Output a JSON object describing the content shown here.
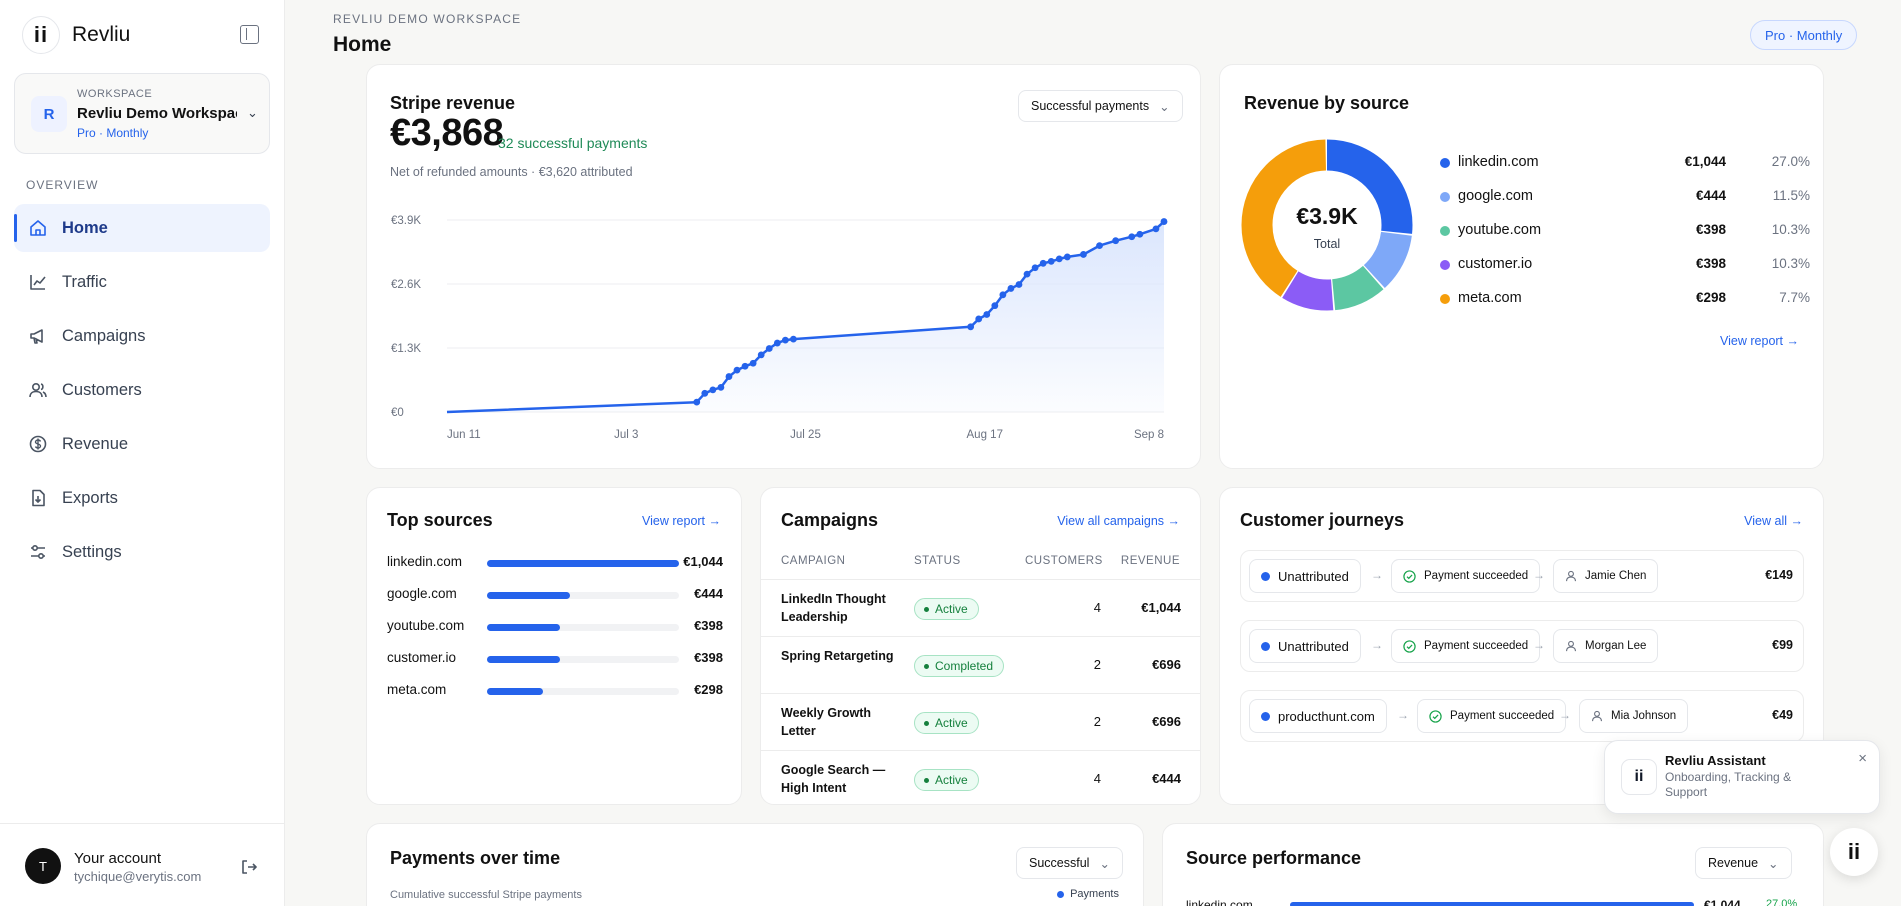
{
  "brand": {
    "name": "Revliu",
    "logo_text": "ii"
  },
  "workspace": {
    "label": "WORKSPACE",
    "avatar": "R",
    "name": "Revliu Demo Workspace",
    "plan": "Pro · Monthly"
  },
  "sidebar": {
    "section": "OVERVIEW",
    "items": [
      {
        "label": "Home",
        "icon": "home-icon",
        "active": true
      },
      {
        "label": "Traffic",
        "icon": "chart-icon"
      },
      {
        "label": "Campaigns",
        "icon": "megaphone-icon"
      },
      {
        "label": "Customers",
        "icon": "users-icon"
      },
      {
        "label": "Revenue",
        "icon": "dollar-icon"
      },
      {
        "label": "Exports",
        "icon": "export-icon"
      },
      {
        "label": "Settings",
        "icon": "sliders-icon"
      }
    ]
  },
  "account": {
    "avatar": "T",
    "name": "Your account",
    "email": "tychique@verytis.com"
  },
  "header": {
    "breadcrumb": "REVLIU DEMO WORKSPACE",
    "title": "Home",
    "plan_badge": "Pro · Monthly"
  },
  "stripe": {
    "title": "Stripe revenue",
    "dropdown": "Successful payments",
    "total": "€3,868",
    "payments": "32 successful payments",
    "note": "Net of refunded amounts · €3,620 attributed"
  },
  "chart_data": {
    "type": "line",
    "title": "Stripe revenue",
    "x_ticks": [
      "Jun 11",
      "Jul 3",
      "Jul 25",
      "Aug 17",
      "Sep 8"
    ],
    "y_ticks": [
      "€0",
      "€1.3K",
      "€2.6K",
      "€3.9K"
    ],
    "ylim": [
      0,
      3900
    ],
    "x": [
      "Jun 11",
      "Jul 12",
      "Jul 13",
      "Jul 14",
      "Jul 15",
      "Jul 16",
      "Jul 17",
      "Jul 18",
      "Jul 19",
      "Jul 20",
      "Jul 21",
      "Jul 22",
      "Jul 23",
      "Jul 24",
      "Aug 15",
      "Aug 16",
      "Aug 17",
      "Aug 18",
      "Aug 19",
      "Aug 20",
      "Aug 21",
      "Aug 22",
      "Aug 23",
      "Aug 24",
      "Aug 25",
      "Aug 26",
      "Aug 27",
      "Aug 29",
      "Aug 31",
      "Sep 2",
      "Sep 4",
      "Sep 5",
      "Sep 7",
      "Sep 8"
    ],
    "values": [
      0,
      200,
      380,
      450,
      500,
      720,
      850,
      930,
      990,
      1160,
      1290,
      1400,
      1460,
      1480,
      1730,
      1890,
      1980,
      2160,
      2380,
      2510,
      2590,
      2800,
      2930,
      3020,
      3060,
      3110,
      3150,
      3200,
      3380,
      3480,
      3560,
      3610,
      3720,
      3868
    ],
    "grid": true,
    "area_fill": "#dbe6fd",
    "line_color": "#2563eb"
  },
  "by_source": {
    "title": "Revenue by source",
    "center_value": "€3.9K",
    "center_label": "Total",
    "link": "View report →",
    "items": [
      {
        "source": "linkedin.com",
        "amount": "€1,044",
        "pct": "27.0%",
        "value": 1044,
        "color": "#2563eb"
      },
      {
        "source": "google.com",
        "amount": "€444",
        "pct": "11.5%",
        "value": 444,
        "color": "#7ea8f8"
      },
      {
        "source": "youtube.com",
        "amount": "€398",
        "pct": "10.3%",
        "value": 398,
        "color": "#5cc7a2"
      },
      {
        "source": "customer.io",
        "amount": "€398",
        "pct": "10.3%",
        "value": 398,
        "color": "#8b5cf6"
      },
      {
        "source": "meta.com",
        "amount": "€298",
        "pct": "7.7%",
        "value": 298,
        "color": "#f59e0b"
      }
    ],
    "donut_remainder": {
      "pct": 33.2,
      "color": "#f59e0b"
    }
  },
  "top_sources": {
    "title": "Top sources",
    "link": "View report →",
    "items": [
      {
        "source": "linkedin.com",
        "amount": "€1,044",
        "fraction": 1.0
      },
      {
        "source": "google.com",
        "amount": "€444",
        "fraction": 0.43
      },
      {
        "source": "youtube.com",
        "amount": "€398",
        "fraction": 0.38
      },
      {
        "source": "customer.io",
        "amount": "€398",
        "fraction": 0.38
      },
      {
        "source": "meta.com",
        "amount": "€298",
        "fraction": 0.29
      }
    ]
  },
  "campaigns": {
    "title": "Campaigns",
    "link": "View all campaigns →",
    "columns": [
      "CAMPAIGN",
      "STATUS",
      "CUSTOMERS",
      "REVENUE"
    ],
    "rows": [
      {
        "name": "LinkedIn Thought Leadership",
        "status": "Active",
        "customers": "4",
        "revenue": "€1,044"
      },
      {
        "name": "Spring Retargeting",
        "status": "Completed",
        "customers": "2",
        "revenue": "€696"
      },
      {
        "name": "Weekly Growth Letter",
        "status": "Active",
        "customers": "2",
        "revenue": "€696"
      },
      {
        "name": "Google Search — High Intent",
        "status": "Active",
        "customers": "4",
        "revenue": "€444"
      }
    ]
  },
  "journeys": {
    "title": "Customer journeys",
    "link": "View all →",
    "rows": [
      {
        "source": "Unattributed",
        "event": "Payment succeeded",
        "customer": "Jamie Chen",
        "amount": "€149"
      },
      {
        "source": "Unattributed",
        "event": "Payment succeeded",
        "customer": "Morgan Lee",
        "amount": "€99"
      },
      {
        "source": "producthunt.com",
        "event": "Payment succeeded",
        "customer": "Mia Johnson",
        "amount": "€49"
      }
    ]
  },
  "payments_over_time": {
    "title": "Payments over time",
    "subtitle": "Cumulative successful Stripe payments",
    "dropdown": "Successful",
    "legend": "Payments"
  },
  "source_performance": {
    "title": "Source performance",
    "dropdown": "Revenue",
    "row_source": "linkedin.com",
    "row_amount": "€1,044",
    "row_pct": "27.0%"
  },
  "assistant": {
    "logo_text": "ii",
    "title": "Revliu Assistant",
    "subtitle": "Onboarding, Tracking & Support",
    "close": "×"
  }
}
